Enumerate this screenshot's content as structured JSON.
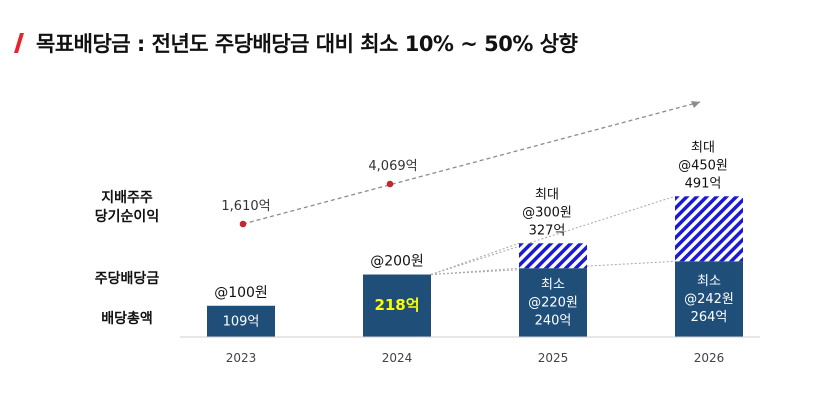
{
  "page_title": "목표배당금 : 전년도 주당배당금 대비 최소 10% ~ 50% 상향",
  "colors": {
    "accent": "#e3262b",
    "bar": "#1f4e79",
    "hatch": "#1a1ad6",
    "dot": "#c0282e",
    "trend": "#8c8c8c"
  },
  "chart_data": {
    "type": "bar",
    "categories": [
      "2023",
      "2024",
      "2025",
      "2026"
    ],
    "row_labels": {
      "net_income": "지배주주\n당기순이익",
      "dps": "주당배당금",
      "total_dividend": "배당총액"
    },
    "series": [
      {
        "name": "배당총액",
        "values": [
          109,
          218,
          240,
          264
        ],
        "labels": [
          "109억",
          "218억",
          "최소\n@220원\n240억",
          "최소\n@242원\n264억"
        ]
      },
      {
        "name": "최대",
        "values": [
          0,
          0,
          87,
          227
        ],
        "labels": [
          "",
          "",
          "최대\n@300원\n327억",
          "최대\n@450원\n491억"
        ]
      }
    ],
    "dps_labels": [
      "@100원",
      "@200원",
      "",
      ""
    ],
    "net_income": {
      "values": [
        1610,
        4069
      ],
      "labels": [
        "1,610억",
        "4,069억"
      ]
    },
    "highlight_color_2024": "#ffff00"
  }
}
